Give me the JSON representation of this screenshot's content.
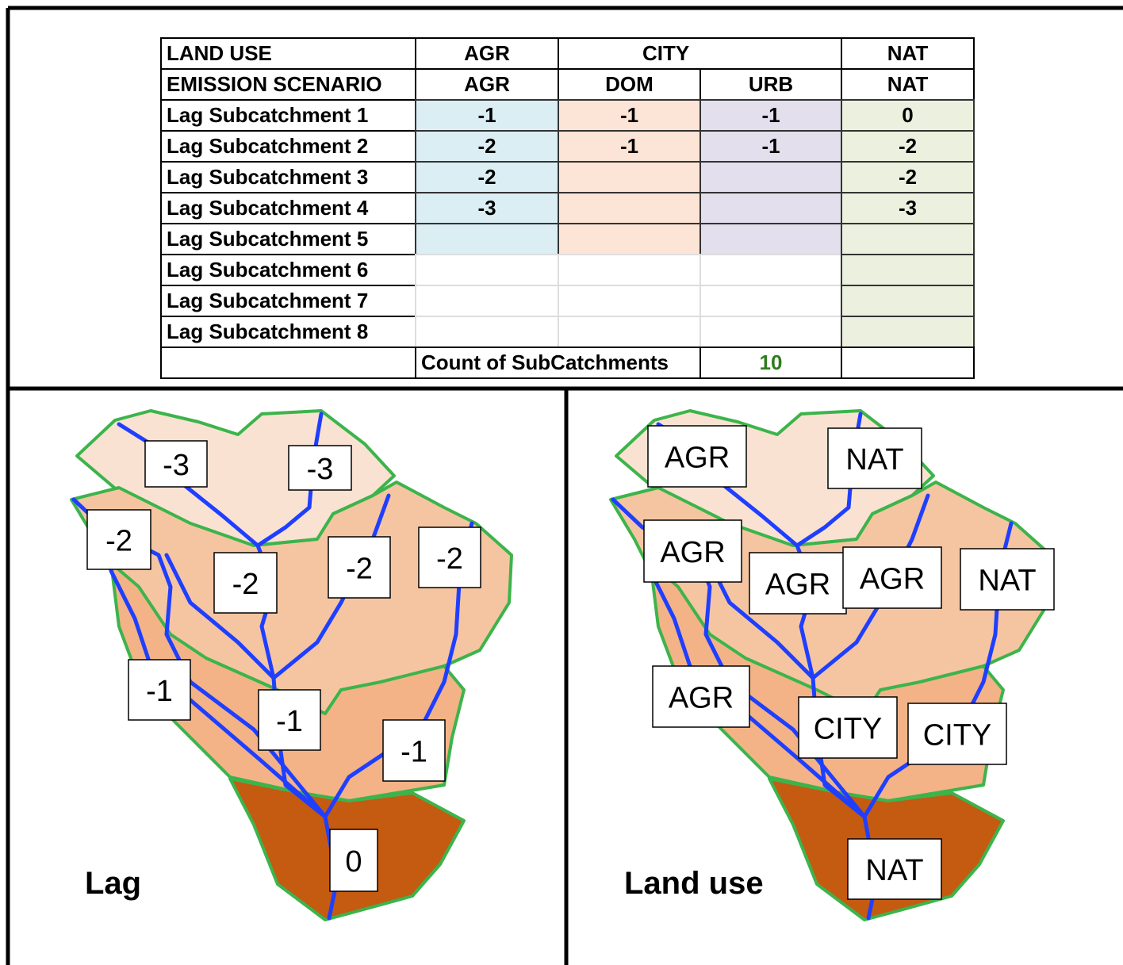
{
  "table": {
    "land_use_row": {
      "label": "LAND USE",
      "agr": "AGR",
      "city": "CITY",
      "nat": "NAT"
    },
    "scenario_row": [
      "EMISSION SCENARIO",
      "AGR",
      "DOM",
      "URB",
      "NAT"
    ],
    "rows": [
      {
        "label": "Lag Subcatchment 1",
        "agr": -1,
        "dom": -1,
        "urb": -1,
        "nat": 0
      },
      {
        "label": "Lag Subcatchment 2",
        "agr": -2,
        "dom": -1,
        "urb": -1,
        "nat": -2
      },
      {
        "label": "Lag Subcatchment 3",
        "agr": -2,
        "nat": -2
      },
      {
        "label": "Lag Subcatchment 4",
        "agr": -3,
        "nat": -3
      },
      {
        "label": "Lag Subcatchment 5"
      },
      {
        "label": "Lag Subcatchment 6"
      },
      {
        "label": "Lag Subcatchment 7"
      },
      {
        "label": "Lag Subcatchment 8"
      }
    ],
    "count": {
      "label": "Count of SubCatchments",
      "value": 10
    }
  },
  "lag_map": {
    "caption": "Lag",
    "labels": [
      -3,
      -3,
      -2,
      -2,
      -2,
      -2,
      -1,
      -1,
      -1,
      0
    ]
  },
  "land_use_map": {
    "caption": "Land use",
    "labels": [
      "AGR",
      "NAT",
      "AGR",
      "AGR",
      "AGR",
      "NAT",
      "AGR",
      "CITY",
      "CITY",
      "NAT"
    ]
  }
}
